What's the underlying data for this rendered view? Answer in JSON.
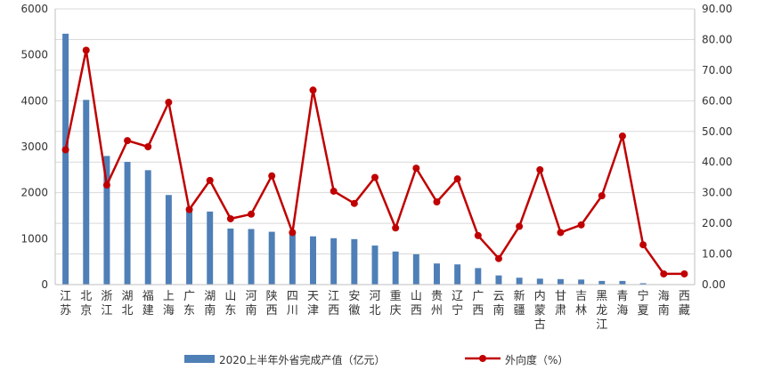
{
  "chart_data": {
    "type": "bar+line",
    "categories": [
      "江苏",
      "北京",
      "浙江",
      "湖北",
      "福建",
      "上海",
      "广东",
      "湖南",
      "山东",
      "河南",
      "陕西",
      "四川",
      "天津",
      "江西",
      "安徽",
      "河北",
      "重庆",
      "山西",
      "贵州",
      "辽宁",
      "广西",
      "云南",
      "新疆",
      "内蒙古",
      "甘肃",
      "吉林",
      "黑龙江",
      "青海",
      "宁夏",
      "海南",
      "西藏"
    ],
    "series": [
      {
        "name": "2020上半年外省完成产值（亿元）",
        "type": "bar",
        "axis": "left",
        "color": "#4f7fb7",
        "values": [
          5460,
          4020,
          2800,
          2670,
          2490,
          1950,
          1690,
          1590,
          1220,
          1210,
          1150,
          1110,
          1050,
          1010,
          990,
          850,
          720,
          660,
          460,
          440,
          360,
          200,
          150,
          130,
          120,
          110,
          80,
          80,
          30,
          10,
          5
        ]
      },
      {
        "name": "外向度（%）",
        "type": "line",
        "axis": "right",
        "color": "#c00000",
        "values": [
          44,
          76.5,
          32.5,
          47,
          45,
          59.5,
          24.5,
          34,
          21.5,
          23,
          35.5,
          17,
          63.5,
          30.5,
          26.5,
          35,
          18.5,
          38,
          27,
          34.5,
          16,
          8.5,
          19,
          37.5,
          17,
          19.5,
          29,
          48.5,
          13,
          3.5,
          3.5
        ]
      }
    ],
    "y_left": {
      "min": 0,
      "max": 6000,
      "ticks": [
        "0",
        "1000",
        "2000",
        "3000",
        "4000",
        "5000",
        "6000"
      ]
    },
    "y_right": {
      "min": 0,
      "max": 90,
      "ticks": [
        "0.00",
        "10.00",
        "20.00",
        "30.00",
        "40.00",
        "50.00",
        "60.00",
        "70.00",
        "80.00",
        "90.00"
      ]
    },
    "grid": true,
    "legend_position": "bottom"
  },
  "legend": {
    "bar_label": "2020上半年外省完成产值（亿元）",
    "line_label": "外向度（%）"
  }
}
